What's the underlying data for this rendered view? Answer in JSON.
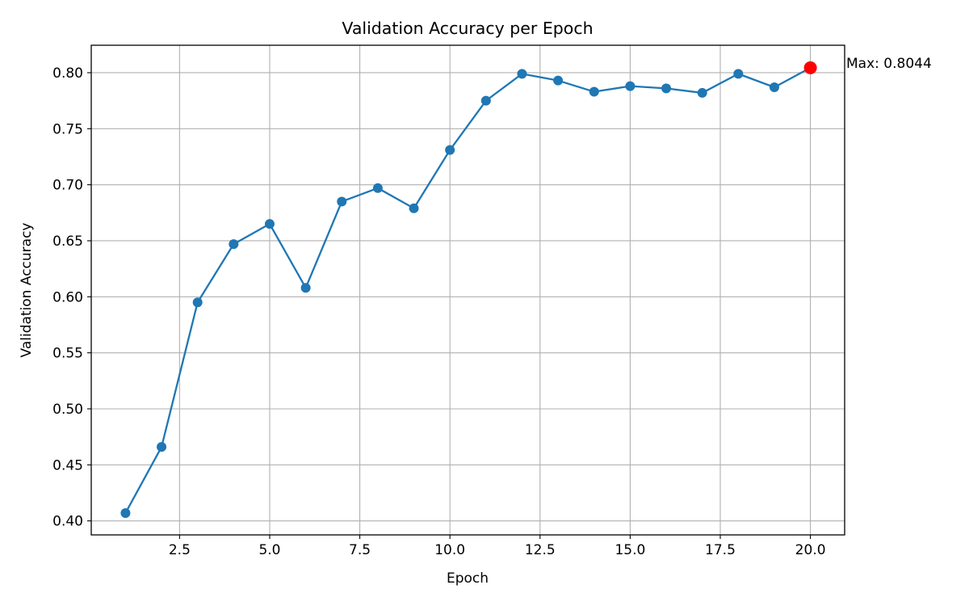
{
  "chart_data": {
    "type": "line",
    "title": "Validation Accuracy per Epoch",
    "xlabel": "Epoch",
    "ylabel": "Validation Accuracy",
    "x": [
      1,
      2,
      3,
      4,
      5,
      6,
      7,
      8,
      9,
      10,
      11,
      12,
      13,
      14,
      15,
      16,
      17,
      18,
      19,
      20
    ],
    "series": [
      {
        "values": [
          0.407,
          0.466,
          0.595,
          0.647,
          0.665,
          0.608,
          0.685,
          0.697,
          0.679,
          0.731,
          0.775,
          0.799,
          0.793,
          0.783,
          0.788,
          0.786,
          0.782,
          0.799,
          0.787,
          0.8044
        ],
        "color": "#1f77b4"
      }
    ],
    "xlim": [
      0.05,
      20.95
    ],
    "ylim": [
      0.3875,
      0.8245
    ],
    "xticks": [
      2.5,
      5.0,
      7.5,
      10.0,
      12.5,
      15.0,
      17.5,
      20.0
    ],
    "xtick_labels": [
      "2.5",
      "5.0",
      "7.5",
      "10.0",
      "12.5",
      "15.0",
      "17.5",
      "20.0"
    ],
    "yticks": [
      0.4,
      0.45,
      0.5,
      0.55,
      0.6,
      0.65,
      0.7,
      0.75,
      0.8
    ],
    "ytick_labels": [
      "0.40",
      "0.45",
      "0.50",
      "0.55",
      "0.60",
      "0.65",
      "0.70",
      "0.75",
      "0.80"
    ],
    "grid": true,
    "max_point": {
      "x": 20,
      "y": 0.8044,
      "color": "#ff0000",
      "label": "Max: 0.8044"
    }
  }
}
